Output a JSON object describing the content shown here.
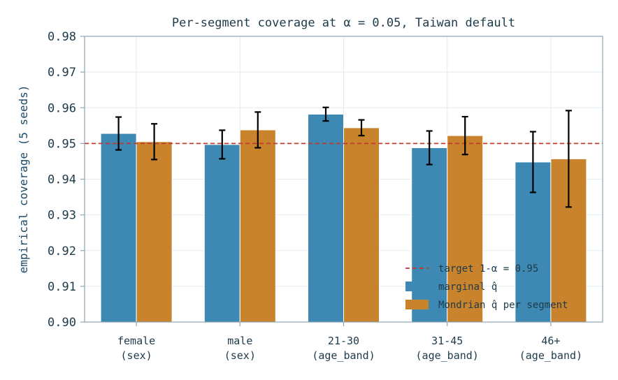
{
  "chart_data": {
    "type": "bar",
    "title": "Per-segment coverage at α = 0.05, Taiwan default",
    "ylabel": "empirical coverage (5 seeds)",
    "xlabel": "",
    "ylim": [
      0.9,
      0.98
    ],
    "yticks": [
      "0.90",
      "0.91",
      "0.92",
      "0.93",
      "0.94",
      "0.95",
      "0.96",
      "0.97",
      "0.98"
    ],
    "categories": [
      [
        "female",
        "(sex)"
      ],
      [
        "male",
        "(sex)"
      ],
      [
        "21-30",
        "(age_band)"
      ],
      [
        "31-45",
        "(age_band)"
      ],
      [
        "46+",
        "(age_band)"
      ]
    ],
    "series": [
      {
        "name": "marginal q̂",
        "color": "#3d89b3",
        "values": [
          0.9528,
          0.9497,
          0.9582,
          0.9488,
          0.9448
        ],
        "errors": [
          0.0046,
          0.004,
          0.0019,
          0.0047,
          0.0085
        ]
      },
      {
        "name": "Mondrian q̂ per segment",
        "color": "#c8832c",
        "values": [
          0.9505,
          0.9538,
          0.9544,
          0.9522,
          0.9457
        ],
        "errors": [
          0.005,
          0.005,
          0.0022,
          0.0053,
          0.0135
        ]
      }
    ],
    "reference_line": {
      "value": 0.95,
      "label": "target 1-α = 0.95",
      "color": "#c0392b"
    },
    "grid": true,
    "legend_position": "bottom-right"
  }
}
